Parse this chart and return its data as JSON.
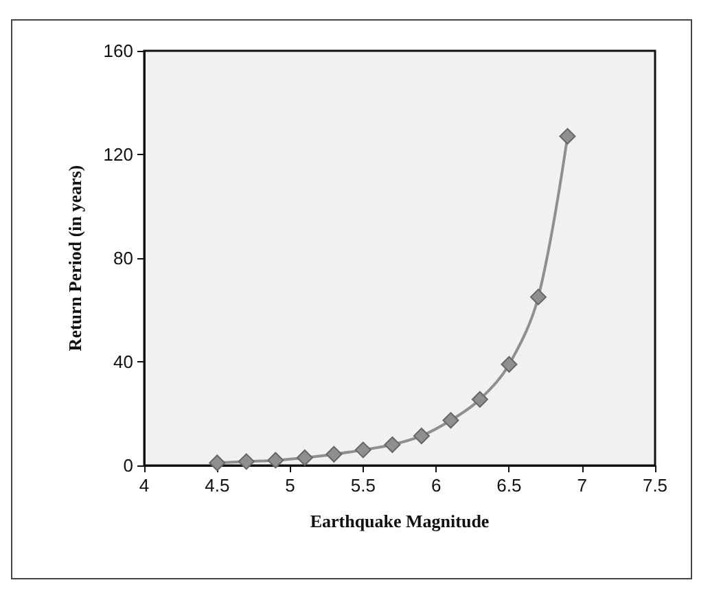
{
  "chart_data": {
    "type": "line",
    "xlabel": "Earthquake Magnitude",
    "ylabel": "Return Period (in years)",
    "series": [
      {
        "color": "#8f8f8f",
        "x": [
          4.5,
          4.7,
          4.9,
          5.1,
          5.3,
          5.5,
          5.7,
          5.9,
          6.1,
          6.3,
          6.5,
          6.7,
          6.9
        ],
        "values": [
          1,
          1.5,
          2,
          3,
          4.3,
          6,
          8,
          11.4,
          17.4,
          25.5,
          39,
          65,
          127
        ]
      }
    ],
    "xlim": [
      4,
      7.5
    ],
    "xticks": [
      4,
      4.5,
      5,
      5.5,
      6,
      6.5,
      7,
      7.5
    ],
    "ylim": [
      0,
      160
    ],
    "yticks": [
      0,
      40,
      80,
      120,
      160
    ],
    "grid": false,
    "marker": "diamond",
    "line_style": "solid"
  }
}
